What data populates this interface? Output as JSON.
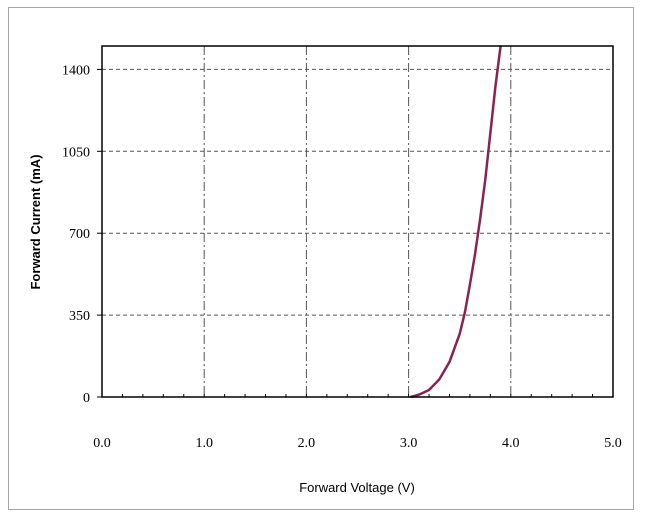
{
  "chart_data": {
    "type": "line",
    "title": "",
    "xlabel": "Forward Voltage (V)",
    "ylabel": "Forward Current (mA)",
    "xlim": [
      0,
      5.0
    ],
    "ylim": [
      0,
      1500
    ],
    "x_ticks": [
      "0.0",
      "1.0",
      "2.0",
      "3.0",
      "4.0",
      "5.0"
    ],
    "y_ticks": [
      "0",
      "350",
      "700",
      "1050",
      "1400"
    ],
    "grid": true,
    "legend": "none",
    "series": [
      {
        "color": "#8b2252",
        "x": [
          3.02,
          3.1,
          3.2,
          3.3,
          3.4,
          3.5,
          3.55,
          3.6,
          3.65,
          3.7,
          3.75,
          3.8,
          3.85,
          3.9
        ],
        "y": [
          0,
          10,
          30,
          75,
          150,
          270,
          360,
          480,
          610,
          760,
          930,
          1130,
          1330,
          1500
        ]
      }
    ]
  }
}
